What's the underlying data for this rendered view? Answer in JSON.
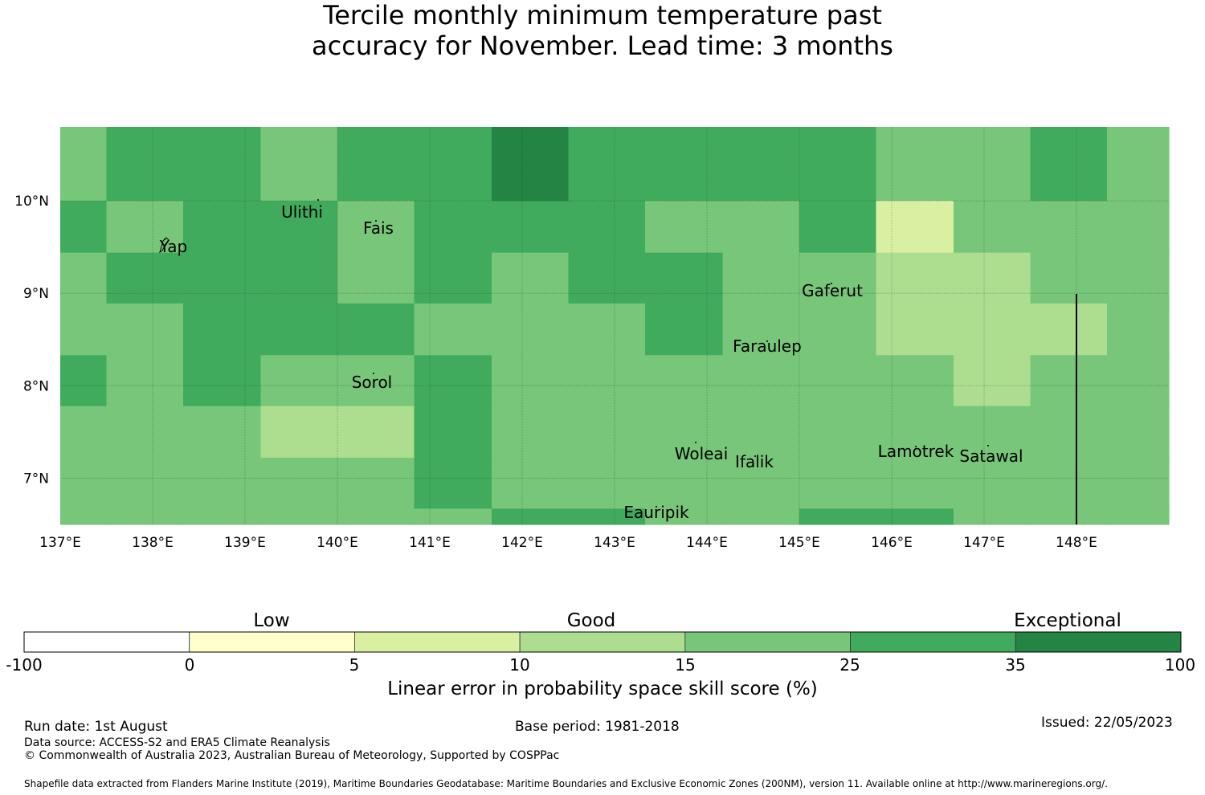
{
  "title_line1": "Tercile monthly minimum temperature past",
  "title_line2": "accuracy for November. Lead time: 3 months",
  "map": {
    "lon_labels": [
      "137°E",
      "138°E",
      "139°E",
      "140°E",
      "141°E",
      "142°E",
      "143°E",
      "144°E",
      "145°E",
      "146°E",
      "147°E",
      "148°E"
    ],
    "lat_labels": [
      "10°N",
      "9°N",
      "8°N",
      "7°N"
    ],
    "places": [
      {
        "name": "Yap"
      },
      {
        "name": "Ulithi"
      },
      {
        "name": "Fais"
      },
      {
        "name": "Gaferut"
      },
      {
        "name": "Faraulep"
      },
      {
        "name": "Sorol"
      },
      {
        "name": "Woleai"
      },
      {
        "name": "Ifalik"
      },
      {
        "name": "Lamotrek"
      },
      {
        "name": "Satawal"
      },
      {
        "name": "Eauripik"
      }
    ]
  },
  "colorbar": {
    "categories": [
      "Low",
      "Good",
      "Exceptional"
    ],
    "ticks": [
      "-100",
      "0",
      "5",
      "10",
      "15",
      "25",
      "35",
      "100"
    ],
    "colors": [
      "#ffffff",
      "#ffffcc",
      "#d9f0a3",
      "#addd8e",
      "#78c679",
      "#41ab5d",
      "#238443"
    ],
    "label": "Linear error in probability space skill score (%)"
  },
  "chart_data": {
    "type": "heatmap",
    "title": "Tercile monthly minimum temperature past accuracy for November. Lead time: 3 months",
    "x_range_lon": [
      137,
      149
    ],
    "y_range_lat": [
      6.5,
      10.8
    ],
    "bins_percent": [
      -100,
      0,
      5,
      10,
      15,
      25,
      35,
      100
    ],
    "cell_class_legend": {
      "2": "5 to 10",
      "3": "10 to 15",
      "4": "15 to 25",
      "5": "25 to 35",
      "6": "35 to 100"
    },
    "grid_note": "rows run north to south; columns run west to east from 137°E",
    "rows": [
      {
        "lat_range": [
          10.0,
          10.8
        ],
        "col_lon_edges": [
          137,
          137.5,
          138.33,
          139.17,
          140.0,
          140.83,
          141.67,
          142.5,
          143.33,
          144.17,
          145.0,
          145.83,
          146.67,
          147.5,
          148.33,
          149
        ],
        "classes": [
          4,
          5,
          5,
          4,
          5,
          5,
          6,
          5,
          5,
          5,
          5,
          4,
          4,
          5,
          4
        ]
      },
      {
        "lat_range": [
          9.44,
          10.0
        ],
        "classes": [
          5,
          4,
          5,
          5,
          4,
          5,
          5,
          5,
          4,
          4,
          5,
          2,
          4,
          4,
          4
        ]
      },
      {
        "lat_range": [
          8.89,
          9.44
        ],
        "classes": [
          4,
          5,
          5,
          5,
          4,
          5,
          4,
          5,
          5,
          4,
          4,
          3,
          3,
          4,
          4
        ]
      },
      {
        "lat_range": [
          8.33,
          8.89
        ],
        "classes": [
          4,
          4,
          5,
          5,
          5,
          4,
          4,
          4,
          5,
          4,
          4,
          3,
          3,
          3,
          4
        ]
      },
      {
        "lat_range": [
          7.78,
          8.33
        ],
        "classes": [
          5,
          4,
          5,
          4,
          4,
          5,
          4,
          4,
          4,
          4,
          4,
          4,
          3,
          4,
          4
        ]
      },
      {
        "lat_range": [
          7.22,
          7.78
        ],
        "classes": [
          4,
          4,
          4,
          3,
          3,
          5,
          4,
          4,
          4,
          4,
          4,
          4,
          4,
          4,
          4
        ]
      },
      {
        "lat_range": [
          6.67,
          7.22
        ],
        "classes": [
          4,
          4,
          4,
          4,
          4,
          5,
          4,
          4,
          4,
          4,
          4,
          4,
          4,
          4,
          4
        ]
      },
      {
        "lat_range": [
          6.5,
          6.67
        ],
        "classes": [
          4,
          4,
          4,
          4,
          4,
          4,
          5,
          5,
          4,
          4,
          5,
          5,
          4,
          4,
          4
        ]
      }
    ]
  },
  "footer": {
    "run_date": "Run date: 1st August",
    "base_period": "Base period: 1981-2018",
    "issued": "Issued: 22/05/2023",
    "data_source": "Data source: ACCESS-S2 and ERA5 Climate Reanalysis",
    "copyright": "© Commonwealth of Australia 2023, Australian Bureau of Meteorology, Supported by COSPPac",
    "shapefile": "Shapefile data extracted from Flanders Marine Institute (2019), Maritime Boundaries Geodatabase: Maritime Boundaries and Exclusive Economic Zones (200NM), version 11. Available online at http://www.marineregions.org/."
  }
}
